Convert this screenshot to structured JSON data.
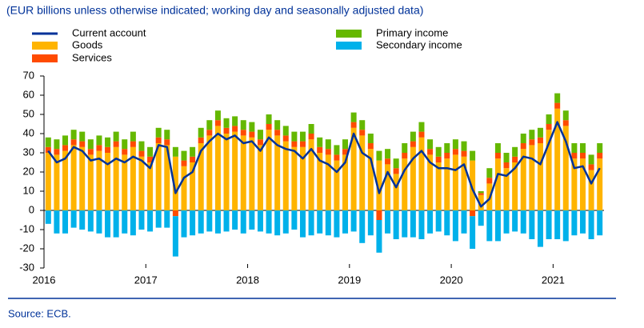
{
  "chart_data": {
    "type": "bar",
    "subtitle": "(EUR billions unless otherwise indicated; working day and seasonally adjusted data)",
    "source": "Source: ECB.",
    "stacked": true,
    "categories": [
      "2016",
      null,
      null,
      null,
      null,
      null,
      null,
      null,
      null,
      null,
      null,
      null,
      "2017",
      null,
      null,
      null,
      null,
      null,
      null,
      null,
      null,
      null,
      null,
      null,
      "2018",
      null,
      null,
      null,
      null,
      null,
      null,
      null,
      null,
      null,
      null,
      null,
      "2019",
      null,
      null,
      null,
      null,
      null,
      null,
      null,
      null,
      null,
      null,
      null,
      "2020",
      null,
      null,
      null,
      null,
      null,
      null,
      null,
      null,
      null,
      null,
      null,
      "2021",
      null,
      null,
      null,
      null,
      null
    ],
    "series": [
      {
        "name": "Goods",
        "color": "#ffb400",
        "values": [
          30,
          29,
          31,
          34,
          33,
          29,
          31,
          30,
          33,
          29,
          33,
          28,
          25,
          35,
          34,
          28,
          23,
          25,
          35,
          39,
          44,
          40,
          41,
          39,
          38,
          34,
          42,
          39,
          36,
          33,
          33,
          37,
          30,
          29,
          26,
          29,
          43,
          39,
          32,
          26,
          24,
          19,
          27,
          33,
          38,
          29,
          25,
          27,
          29,
          28,
          26,
          8,
          14,
          27,
          22,
          25,
          32,
          34,
          35,
          42,
          53,
          44,
          27,
          27,
          21,
          27
        ]
      },
      {
        "name": "Services",
        "color": "#ff4b00",
        "values": [
          3,
          3,
          3,
          3,
          3,
          3,
          3,
          3,
          3,
          3,
          3,
          3,
          3,
          3,
          3,
          -3,
          3,
          3,
          3,
          3,
          3,
          3,
          3,
          3,
          3,
          3,
          3,
          3,
          3,
          3,
          3,
          3,
          3,
          3,
          3,
          3,
          3,
          3,
          3,
          -5,
          3,
          3,
          3,
          3,
          3,
          3,
          3,
          3,
          3,
          3,
          -3,
          1,
          3,
          3,
          3,
          3,
          3,
          3,
          3,
          3,
          3,
          3,
          3,
          3,
          3,
          3
        ]
      },
      {
        "name": "Primary income",
        "color": "#65b800",
        "values": [
          5,
          5,
          5,
          5,
          5,
          5,
          5,
          5,
          5,
          5,
          5,
          5,
          5,
          5,
          5,
          5,
          5,
          5,
          5,
          5,
          5,
          5,
          5,
          5,
          5,
          5,
          5,
          5,
          5,
          5,
          5,
          5,
          5,
          5,
          5,
          5,
          5,
          5,
          5,
          5,
          5,
          5,
          5,
          5,
          5,
          5,
          5,
          5,
          5,
          5,
          5,
          1,
          5,
          5,
          5,
          5,
          5,
          5,
          5,
          5,
          5,
          5,
          5,
          5,
          5,
          5
        ]
      },
      {
        "name": "Secondary income",
        "color": "#00b1ea",
        "values": [
          -7,
          -12,
          -12,
          -9,
          -10,
          -11,
          -12,
          -14,
          -14,
          -12,
          -13,
          -10,
          -11,
          -9,
          -9,
          -21,
          -14,
          -13,
          -12,
          -11,
          -12,
          -11,
          -10,
          -12,
          -10,
          -11,
          -12,
          -13,
          -12,
          -10,
          -14,
          -13,
          -12,
          -13,
          -14,
          -12,
          -11,
          -17,
          -13,
          -17,
          -12,
          -15,
          -14,
          -14,
          -15,
          -12,
          -11,
          -13,
          -16,
          -12,
          -17,
          -8,
          -16,
          -16,
          -12,
          -11,
          -12,
          -15,
          -19,
          -15,
          -15,
          -16,
          -13,
          -12,
          -15,
          -13
        ]
      },
      {
        "name": "Current account",
        "type": "line",
        "color": "#003299",
        "values": [
          31,
          25,
          27,
          33,
          31,
          26,
          27,
          24,
          27,
          25,
          28,
          26,
          22,
          34,
          33,
          9,
          17,
          20,
          31,
          36,
          40,
          37,
          39,
          35,
          36,
          31,
          38,
          34,
          32,
          31,
          27,
          32,
          26,
          24,
          20,
          25,
          40,
          30,
          27,
          9,
          20,
          12,
          21,
          27,
          31,
          25,
          22,
          22,
          21,
          24,
          11,
          2,
          6,
          19,
          18,
          22,
          28,
          27,
          24,
          35,
          46,
          36,
          22,
          23,
          14,
          22
        ]
      }
    ],
    "ylim": [
      -30,
      70
    ],
    "yticks": [
      -30,
      -20,
      -10,
      0,
      10,
      20,
      30,
      40,
      50,
      60,
      70
    ]
  }
}
